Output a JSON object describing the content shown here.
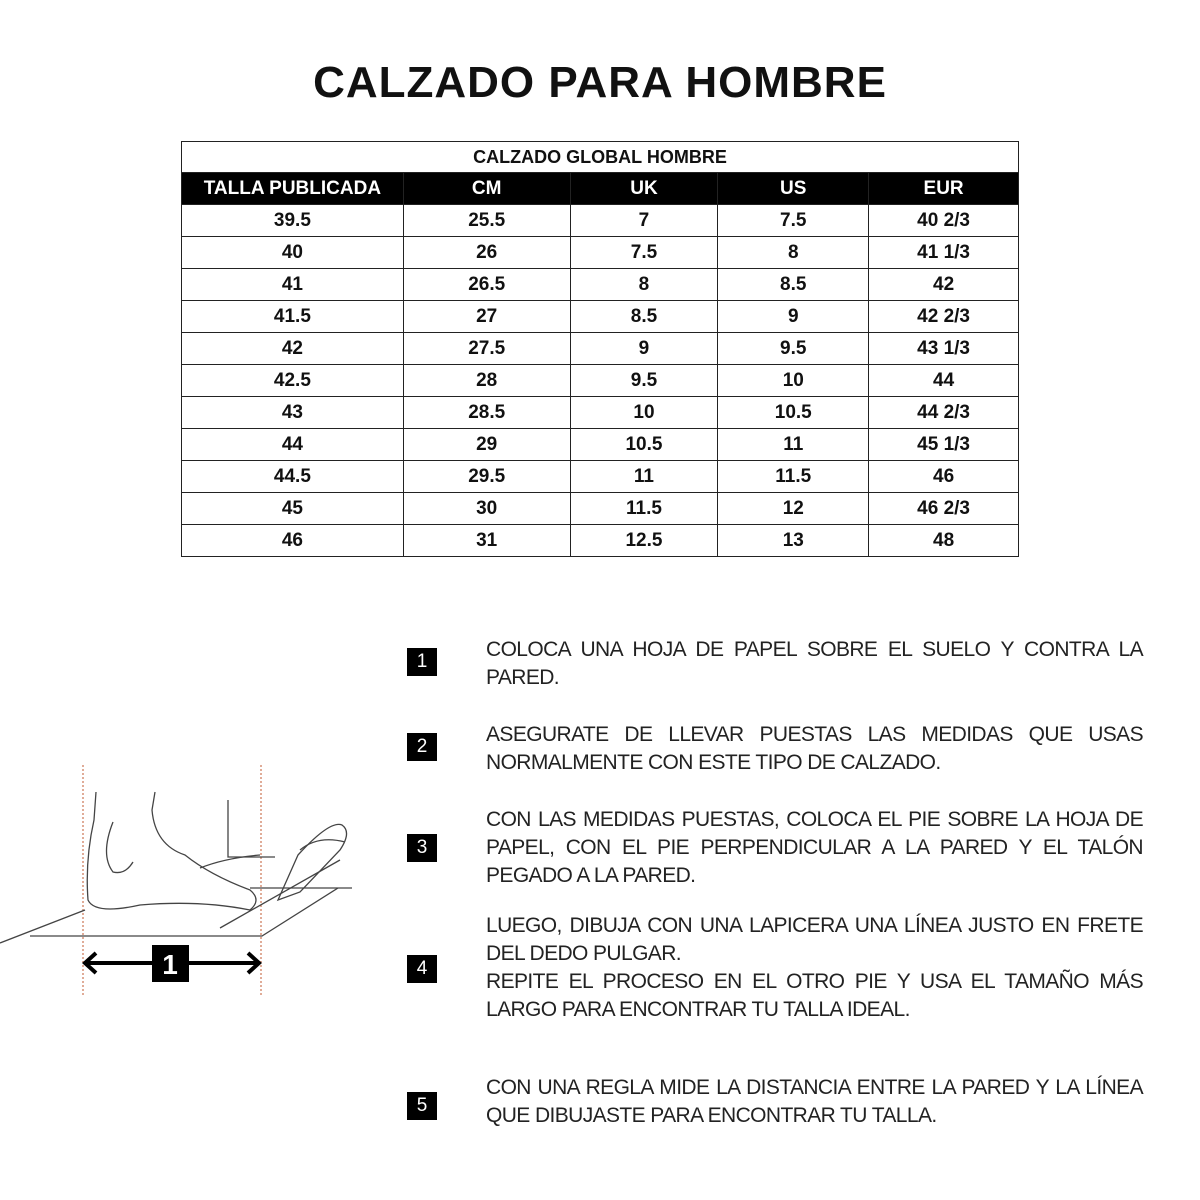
{
  "title": "CALZADO PARA HOMBRE",
  "table": {
    "caption": "CALZADO GLOBAL HOMBRE",
    "headers": [
      "TALLA PUBLICADA",
      "CM",
      "UK",
      "US",
      "EUR"
    ],
    "rows": [
      [
        "39.5",
        "25.5",
        "7",
        "7.5",
        "40 2/3"
      ],
      [
        "40",
        "26",
        "7.5",
        "8",
        "41 1/3"
      ],
      [
        "41",
        "26.5",
        "8",
        "8.5",
        "42"
      ],
      [
        "41.5",
        "27",
        "8.5",
        "9",
        "42 2/3"
      ],
      [
        "42",
        "27.5",
        "9",
        "9.5",
        "43 1/3"
      ],
      [
        "42.5",
        "28",
        "9.5",
        "10",
        "44"
      ],
      [
        "43",
        "28.5",
        "10",
        "10.5",
        "44 2/3"
      ],
      [
        "44",
        "29",
        "10.5",
        "11",
        "45 1/3"
      ],
      [
        "44.5",
        "29.5",
        "11",
        "11.5",
        "46"
      ],
      [
        "45",
        "30",
        "11.5",
        "12",
        "46 2/3"
      ],
      [
        "46",
        "31",
        "12.5",
        "13",
        "48"
      ]
    ]
  },
  "illustration": {
    "label": "1"
  },
  "steps": [
    {
      "num": "1",
      "text": "COLOCA UNA HOJA DE PAPEL SOBRE EL SUELO Y CONTRA LA PARED."
    },
    {
      "num": "2",
      "text": "ASEGURATE DE LLEVAR PUESTAS LAS MEDIDAS QUE USAS NORMALMENTE CON ESTE TIPO DE CALZADO."
    },
    {
      "num": "3",
      "text": "CON LAS MEDIDAS PUESTAS, COLOCA EL PIE SOBRE LA HOJA DE PAPEL, CON EL PIE PERPENDICULAR A LA PARED Y EL TALÓN PEGADO A LA PARED."
    },
    {
      "num": "4",
      "text": "LUEGO, DIBUJA CON UNA LAPICERA UNA LÍNEA JUSTO EN FRETE DEL DEDO PULGAR.",
      "text2": "REPITE EL PROCESO EN EL OTRO PIE Y USA EL TAMAÑO MÁS LARGO PARA ENCONTRAR TU TALLA IDEAL."
    },
    {
      "num": "5",
      "text": "CON UNA REGLA MIDE LA DISTANCIA ENTRE LA PARED Y LA LÍNEA QUE DIBUJASTE PARA ENCONTRAR TU TALLA."
    }
  ]
}
